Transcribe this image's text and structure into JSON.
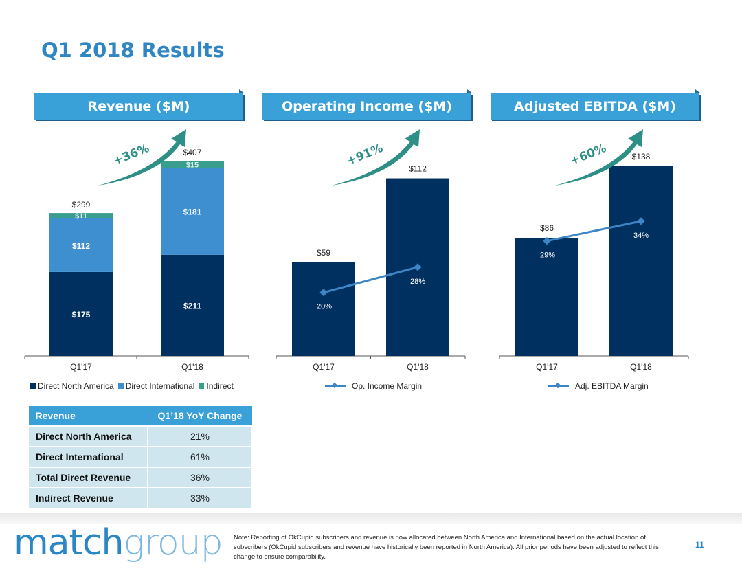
{
  "title": "Q1 2018 Results",
  "colors": {
    "accent": "#3aa0d8",
    "dark_navy": "#00305f",
    "light_blue": "#3d8fd0",
    "teal": "#3a9e8f",
    "arrow_teal": "#2e8f86",
    "line_blue": "#3d85c6"
  },
  "chart_data": [
    {
      "type": "bar",
      "stacked": true,
      "title": "Revenue ($M)",
      "growth_label": "+36%",
      "categories": [
        "Q1'17",
        "Q1'18"
      ],
      "totals": [
        "$299",
        "$407"
      ],
      "series": [
        {
          "name": "Direct North America",
          "values": [
            175,
            211
          ],
          "labels": [
            "$175",
            "$211"
          ]
        },
        {
          "name": "Direct International",
          "values": [
            112,
            181
          ],
          "labels": [
            "$112",
            "$181"
          ]
        },
        {
          "name": "Indirect",
          "values": [
            11,
            15
          ],
          "labels": [
            "$11",
            "$15"
          ]
        }
      ],
      "ylim": [
        0,
        430
      ]
    },
    {
      "type": "bar",
      "title": "Operating Income ($M)",
      "growth_label": "+91%",
      "categories": [
        "Q1'17",
        "Q1'18"
      ],
      "values": [
        59,
        112
      ],
      "value_labels": [
        "$59",
        "$112"
      ],
      "line_series": {
        "name": "Op. Income Margin",
        "values": [
          20,
          28
        ],
        "labels": [
          "20%",
          "28%"
        ]
      },
      "ylim": [
        0,
        130
      ]
    },
    {
      "type": "bar",
      "title": "Adjusted EBITDA ($M)",
      "growth_label": "+60%",
      "categories": [
        "Q1'17",
        "Q1'18"
      ],
      "values": [
        86,
        138
      ],
      "value_labels": [
        "$86",
        "$138"
      ],
      "line_series": {
        "name": "Adj. EBITDA Margin",
        "values": [
          29,
          34
        ],
        "labels": [
          "29%",
          "34%"
        ]
      },
      "ylim": [
        0,
        150
      ]
    }
  ],
  "legends": {
    "revenue": [
      "Direct North America",
      "Direct International",
      "Indirect"
    ],
    "op_income": "Op. Income Margin",
    "ebitda": "Adj. EBITDA Margin"
  },
  "table": {
    "headers": [
      "Revenue",
      "Q1’18 YoY Change"
    ],
    "rows": [
      {
        "label": "Direct North America",
        "value": "21%"
      },
      {
        "label": "Direct International",
        "value": "61%"
      },
      {
        "label": "Total Direct Revenue",
        "value": "36%"
      },
      {
        "label": "Indirect Revenue",
        "value": "33%"
      }
    ]
  },
  "logo": {
    "part1": "match",
    "part2": "group"
  },
  "note": "Note: Reporting of OkCupid subscribers and revenue is now allocated between North America and International based on the actual location of subscribers (OkCupid subscribers and revenue have historically been reported in North America). All prior periods have been adjusted to reflect this change to ensure comparability.",
  "page_number": "11"
}
